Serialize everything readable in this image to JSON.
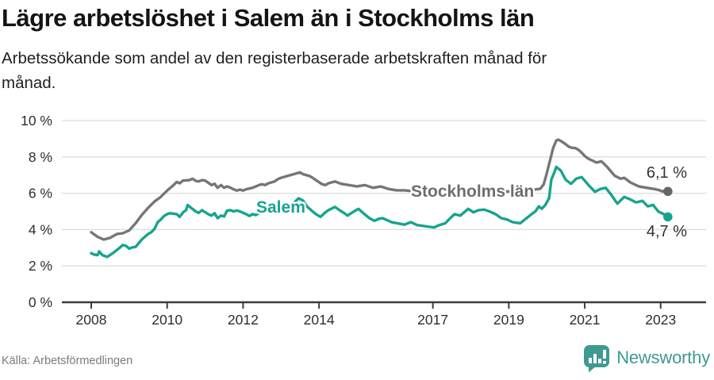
{
  "header": {
    "title": "Lägre arbetslöshet i Salem än i Stockholms län",
    "subtitle_lines": [
      "Arbetssökande som andel av den registerbaserade arbetskraften månad för",
      "månad."
    ]
  },
  "footer": {
    "source": "Källa: Arbetsförmedlingen",
    "brand_name": "Newsworthy"
  },
  "colors": {
    "salem": "#17a48e",
    "stockholm": "#767676",
    "stockholm_dot": "#666666",
    "grid": "#dddddd",
    "axis": "#3c3c3c",
    "tick_text": "#2e2e2e",
    "logo": "#3d9a92"
  },
  "chart_data": {
    "type": "line",
    "title": "Lägre arbetslöshet i Salem än i Stockholms län",
    "subtitle": "Arbetssökande som andel av den registerbaserade arbetskraften månad för månad.",
    "unit": "%",
    "grid": true,
    "legend_position": "inline-labels",
    "xlim": [
      2007.25,
      2024.2
    ],
    "ylim": [
      0,
      10
    ],
    "yticks": [
      {
        "value": 0,
        "label": "0 %"
      },
      {
        "value": 2,
        "label": "2 %"
      },
      {
        "value": 4,
        "label": "4 %"
      },
      {
        "value": 6,
        "label": "6 %"
      },
      {
        "value": 8,
        "label": "8 %"
      },
      {
        "value": 10,
        "label": "10 %"
      }
    ],
    "xticks": [
      {
        "value": 2008,
        "label": "2008"
      },
      {
        "value": 2010,
        "label": "2010"
      },
      {
        "value": 2012,
        "label": "2012"
      },
      {
        "value": 2014,
        "label": "2014"
      },
      {
        "value": 2017,
        "label": "2017"
      },
      {
        "value": 2019,
        "label": "2019"
      },
      {
        "value": 2021,
        "label": "2021"
      },
      {
        "value": 2023,
        "label": "2023"
      }
    ],
    "series": [
      {
        "name": "Stockholms län",
        "color": "#767676",
        "dot_color": "#666666",
        "end_label": "6,1 %",
        "end_value": 6.1,
        "points": [
          [
            2008.0,
            3.85
          ],
          [
            2008.17,
            3.6
          ],
          [
            2008.33,
            3.45
          ],
          [
            2008.5,
            3.55
          ],
          [
            2008.67,
            3.75
          ],
          [
            2008.83,
            3.8
          ],
          [
            2009.0,
            3.95
          ],
          [
            2009.17,
            4.35
          ],
          [
            2009.33,
            4.8
          ],
          [
            2009.5,
            5.2
          ],
          [
            2009.67,
            5.55
          ],
          [
            2009.83,
            5.8
          ],
          [
            2010.0,
            6.15
          ],
          [
            2010.17,
            6.45
          ],
          [
            2010.25,
            6.62
          ],
          [
            2010.33,
            6.55
          ],
          [
            2010.42,
            6.7
          ],
          [
            2010.58,
            6.72
          ],
          [
            2010.67,
            6.8
          ],
          [
            2010.75,
            6.68
          ],
          [
            2010.83,
            6.65
          ],
          [
            2010.92,
            6.72
          ],
          [
            2011.0,
            6.7
          ],
          [
            2011.08,
            6.58
          ],
          [
            2011.17,
            6.45
          ],
          [
            2011.25,
            6.52
          ],
          [
            2011.33,
            6.3
          ],
          [
            2011.42,
            6.45
          ],
          [
            2011.5,
            6.3
          ],
          [
            2011.58,
            6.38
          ],
          [
            2011.67,
            6.3
          ],
          [
            2011.75,
            6.22
          ],
          [
            2011.83,
            6.15
          ],
          [
            2011.92,
            6.2
          ],
          [
            2012.0,
            6.15
          ],
          [
            2012.08,
            6.22
          ],
          [
            2012.25,
            6.3
          ],
          [
            2012.42,
            6.45
          ],
          [
            2012.5,
            6.5
          ],
          [
            2012.58,
            6.45
          ],
          [
            2012.67,
            6.55
          ],
          [
            2012.83,
            6.65
          ],
          [
            2012.92,
            6.78
          ],
          [
            2013.0,
            6.85
          ],
          [
            2013.17,
            6.95
          ],
          [
            2013.33,
            7.05
          ],
          [
            2013.5,
            7.15
          ],
          [
            2013.58,
            7.05
          ],
          [
            2013.75,
            6.95
          ],
          [
            2013.83,
            6.85
          ],
          [
            2013.92,
            6.72
          ],
          [
            2014.08,
            6.5
          ],
          [
            2014.17,
            6.45
          ],
          [
            2014.25,
            6.55
          ],
          [
            2014.42,
            6.65
          ],
          [
            2014.58,
            6.52
          ],
          [
            2014.79,
            6.45
          ],
          [
            2015.0,
            6.38
          ],
          [
            2015.21,
            6.45
          ],
          [
            2015.42,
            6.3
          ],
          [
            2015.63,
            6.37
          ],
          [
            2015.84,
            6.23
          ],
          [
            2016.05,
            6.16
          ],
          [
            2016.26,
            6.16
          ],
          [
            2016.5,
            6.1
          ],
          [
            2016.75,
            6.05
          ],
          [
            2017.0,
            6.0
          ],
          [
            2017.25,
            5.97
          ],
          [
            2017.5,
            5.95
          ],
          [
            2017.75,
            6.0
          ],
          [
            2018.0,
            6.0
          ],
          [
            2018.25,
            6.05
          ],
          [
            2018.5,
            6.05
          ],
          [
            2018.75,
            6.08
          ],
          [
            2019.0,
            6.1
          ],
          [
            2019.25,
            6.12
          ],
          [
            2019.5,
            6.15
          ],
          [
            2019.67,
            6.2
          ],
          [
            2019.83,
            6.25
          ],
          [
            2019.92,
            6.5
          ],
          [
            2020.0,
            7.1
          ],
          [
            2020.08,
            7.75
          ],
          [
            2020.17,
            8.5
          ],
          [
            2020.25,
            8.9
          ],
          [
            2020.3,
            8.95
          ],
          [
            2020.39,
            8.85
          ],
          [
            2020.5,
            8.7
          ],
          [
            2020.58,
            8.56
          ],
          [
            2020.67,
            8.5
          ],
          [
            2020.75,
            8.49
          ],
          [
            2020.83,
            8.4
          ],
          [
            2020.9,
            8.27
          ],
          [
            2021.0,
            8.05
          ],
          [
            2021.1,
            7.9
          ],
          [
            2021.31,
            7.69
          ],
          [
            2021.44,
            7.76
          ],
          [
            2021.58,
            7.47
          ],
          [
            2021.79,
            6.96
          ],
          [
            2021.95,
            6.8
          ],
          [
            2022.04,
            6.85
          ],
          [
            2022.21,
            6.59
          ],
          [
            2022.42,
            6.38
          ],
          [
            2022.63,
            6.3
          ],
          [
            2022.84,
            6.23
          ],
          [
            2022.95,
            6.18
          ],
          [
            2023.05,
            6.1
          ],
          [
            2023.12,
            6.15
          ],
          [
            2023.19,
            6.1
          ]
        ]
      },
      {
        "name": "Salem",
        "color": "#17a48e",
        "dot_color": "#17a48e",
        "end_label": "4,7 %",
        "end_value": 4.7,
        "points": [
          [
            2008.0,
            2.7
          ],
          [
            2008.08,
            2.62
          ],
          [
            2008.17,
            2.6
          ],
          [
            2008.21,
            2.8
          ],
          [
            2008.29,
            2.6
          ],
          [
            2008.42,
            2.5
          ],
          [
            2008.58,
            2.72
          ],
          [
            2008.75,
            3.0
          ],
          [
            2008.83,
            3.15
          ],
          [
            2008.92,
            3.1
          ],
          [
            2009.0,
            2.95
          ],
          [
            2009.08,
            3.02
          ],
          [
            2009.17,
            3.05
          ],
          [
            2009.33,
            3.45
          ],
          [
            2009.5,
            3.76
          ],
          [
            2009.58,
            3.85
          ],
          [
            2009.67,
            4.05
          ],
          [
            2009.75,
            4.4
          ],
          [
            2009.83,
            4.55
          ],
          [
            2009.92,
            4.75
          ],
          [
            2010.0,
            4.85
          ],
          [
            2010.08,
            4.9
          ],
          [
            2010.25,
            4.85
          ],
          [
            2010.33,
            4.7
          ],
          [
            2010.42,
            4.95
          ],
          [
            2010.5,
            5.07
          ],
          [
            2010.54,
            5.35
          ],
          [
            2010.63,
            5.2
          ],
          [
            2010.75,
            5.0
          ],
          [
            2010.83,
            4.92
          ],
          [
            2010.92,
            5.07
          ],
          [
            2011.0,
            4.95
          ],
          [
            2011.08,
            4.85
          ],
          [
            2011.17,
            4.77
          ],
          [
            2011.25,
            4.9
          ],
          [
            2011.33,
            4.63
          ],
          [
            2011.42,
            4.77
          ],
          [
            2011.5,
            4.72
          ],
          [
            2011.58,
            5.05
          ],
          [
            2011.67,
            5.07
          ],
          [
            2011.75,
            5.0
          ],
          [
            2011.83,
            5.05
          ],
          [
            2011.92,
            5.0
          ],
          [
            2012.0,
            4.92
          ],
          [
            2012.08,
            4.85
          ],
          [
            2012.17,
            4.75
          ],
          [
            2012.25,
            4.85
          ],
          [
            2012.33,
            4.8
          ],
          [
            2012.42,
            4.9
          ],
          [
            2012.58,
            5.0
          ],
          [
            2012.75,
            5.1
          ],
          [
            2013.0,
            5.2
          ],
          [
            2013.17,
            5.3
          ],
          [
            2013.33,
            5.45
          ],
          [
            2013.46,
            5.72
          ],
          [
            2013.58,
            5.6
          ],
          [
            2013.68,
            5.28
          ],
          [
            2013.83,
            5.0
          ],
          [
            2013.92,
            4.85
          ],
          [
            2014.04,
            4.7
          ],
          [
            2014.17,
            4.95
          ],
          [
            2014.25,
            5.07
          ],
          [
            2014.42,
            5.25
          ],
          [
            2014.54,
            5.07
          ],
          [
            2014.67,
            4.9
          ],
          [
            2014.75,
            4.77
          ],
          [
            2014.92,
            5.0
          ],
          [
            2015.04,
            5.14
          ],
          [
            2015.17,
            4.9
          ],
          [
            2015.33,
            4.63
          ],
          [
            2015.46,
            4.48
          ],
          [
            2015.58,
            4.6
          ],
          [
            2015.67,
            4.63
          ],
          [
            2015.75,
            4.56
          ],
          [
            2015.92,
            4.4
          ],
          [
            2016.08,
            4.34
          ],
          [
            2016.25,
            4.27
          ],
          [
            2016.42,
            4.41
          ],
          [
            2016.58,
            4.25
          ],
          [
            2016.75,
            4.2
          ],
          [
            2016.92,
            4.15
          ],
          [
            2017.03,
            4.12
          ],
          [
            2017.17,
            4.25
          ],
          [
            2017.33,
            4.35
          ],
          [
            2017.42,
            4.55
          ],
          [
            2017.57,
            4.85
          ],
          [
            2017.72,
            4.77
          ],
          [
            2017.93,
            5.14
          ],
          [
            2018.07,
            4.95
          ],
          [
            2018.2,
            5.07
          ],
          [
            2018.35,
            5.1
          ],
          [
            2018.5,
            4.99
          ],
          [
            2018.65,
            4.85
          ],
          [
            2018.8,
            4.63
          ],
          [
            2018.95,
            4.56
          ],
          [
            2019.1,
            4.41
          ],
          [
            2019.3,
            4.35
          ],
          [
            2019.45,
            4.6
          ],
          [
            2019.6,
            4.85
          ],
          [
            2019.7,
            5.0
          ],
          [
            2019.79,
            5.28
          ],
          [
            2019.87,
            5.15
          ],
          [
            2019.96,
            5.35
          ],
          [
            2020.06,
            5.72
          ],
          [
            2020.12,
            6.74
          ],
          [
            2020.19,
            7.1
          ],
          [
            2020.25,
            7.45
          ],
          [
            2020.37,
            7.25
          ],
          [
            2020.5,
            6.74
          ],
          [
            2020.64,
            6.52
          ],
          [
            2020.78,
            6.81
          ],
          [
            2020.92,
            6.89
          ],
          [
            2021.1,
            6.45
          ],
          [
            2021.27,
            6.08
          ],
          [
            2021.41,
            6.23
          ],
          [
            2021.55,
            6.3
          ],
          [
            2021.69,
            5.94
          ],
          [
            2021.86,
            5.43
          ],
          [
            2022.04,
            5.8
          ],
          [
            2022.21,
            5.65
          ],
          [
            2022.35,
            5.5
          ],
          [
            2022.52,
            5.58
          ],
          [
            2022.66,
            5.28
          ],
          [
            2022.8,
            5.36
          ],
          [
            2022.94,
            4.99
          ],
          [
            2023.08,
            4.85
          ],
          [
            2023.19,
            4.7
          ]
        ]
      }
    ]
  }
}
